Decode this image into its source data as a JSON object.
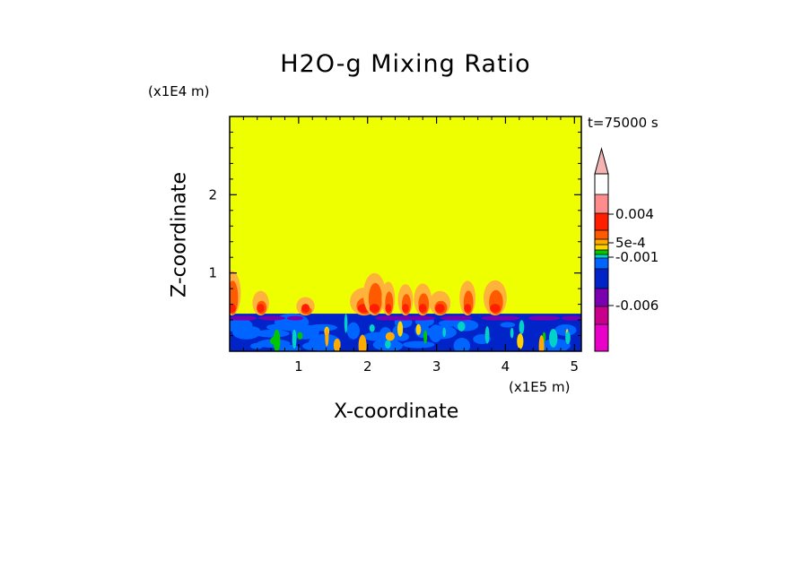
{
  "chart_data": {
    "type": "heatmap",
    "title": "H2O-g Mixing Ratio",
    "xlabel": "X-coordinate",
    "ylabel": "Z-coordinate",
    "x_unit": "(x1E5 m)",
    "z_unit": "(x1E4 m)",
    "time_label": "t=75000 s",
    "xlim": [
      0,
      5.1
    ],
    "ylim": [
      0,
      3
    ],
    "x_ticks": [
      1,
      2,
      3,
      4,
      5
    ],
    "x_tick_labels": [
      "1",
      "2",
      "3",
      "4",
      "5"
    ],
    "y_ticks": [
      1,
      2
    ],
    "y_tick_labels": [
      "1",
      "2"
    ],
    "background_level_color": "#eeff00",
    "colorbar": {
      "colors": [
        "#e800c8",
        "#c8008c",
        "#7a00b0",
        "#0024c8",
        "#0064ff",
        "#00d2c8",
        "#00c800",
        "#ffd200",
        "#ffaa00",
        "#ff5a00",
        "#ff1e00",
        "#ff8c8c",
        "#f4b4b4"
      ],
      "labels": [
        "0.004",
        "5e-4",
        "-0.001",
        "-0.006"
      ],
      "extend": "max"
    },
    "features": {
      "boundary_layer_top_z": 0.48,
      "plume_max_height_z": 1.05
    }
  }
}
